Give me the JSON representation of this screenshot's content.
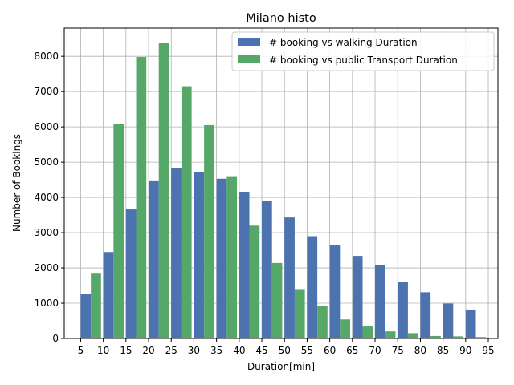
{
  "chart_data": {
    "type": "bar",
    "title": "Milano histo",
    "xlabel": "Duration[min]",
    "ylabel": "Number of Bookings",
    "ylim": [
      0,
      8800
    ],
    "grid": true,
    "legend_position": "top-right",
    "categories": [
      5,
      10,
      15,
      20,
      25,
      30,
      35,
      40,
      45,
      50,
      55,
      60,
      65,
      70,
      75,
      80,
      85,
      90,
      95
    ],
    "x_ticks": [
      "5",
      "10",
      "15",
      "20",
      "25",
      "30",
      "35",
      "40",
      "45",
      "50",
      "55",
      "60",
      "65",
      "70",
      "75",
      "80",
      "85",
      "90",
      "95"
    ],
    "y_ticks": [
      "0",
      "1000",
      "2000",
      "3000",
      "4000",
      "5000",
      "6000",
      "7000",
      "8000"
    ],
    "series": [
      {
        "name": "# booking vs walking Duration",
        "color": "#4c72b0",
        "values": [
          1270,
          2450,
          3660,
          4460,
          4820,
          4730,
          4530,
          4140,
          3890,
          3430,
          2900,
          2660,
          2340,
          2090,
          1600,
          1310,
          990,
          820,
          0
        ]
      },
      {
        "name": "# booking vs public Transport Duration",
        "color": "#55a868",
        "values": [
          1860,
          6080,
          7980,
          8380,
          7150,
          6050,
          4580,
          3200,
          2140,
          1400,
          920,
          540,
          340,
          200,
          150,
          70,
          60,
          40,
          0
        ]
      }
    ]
  }
}
